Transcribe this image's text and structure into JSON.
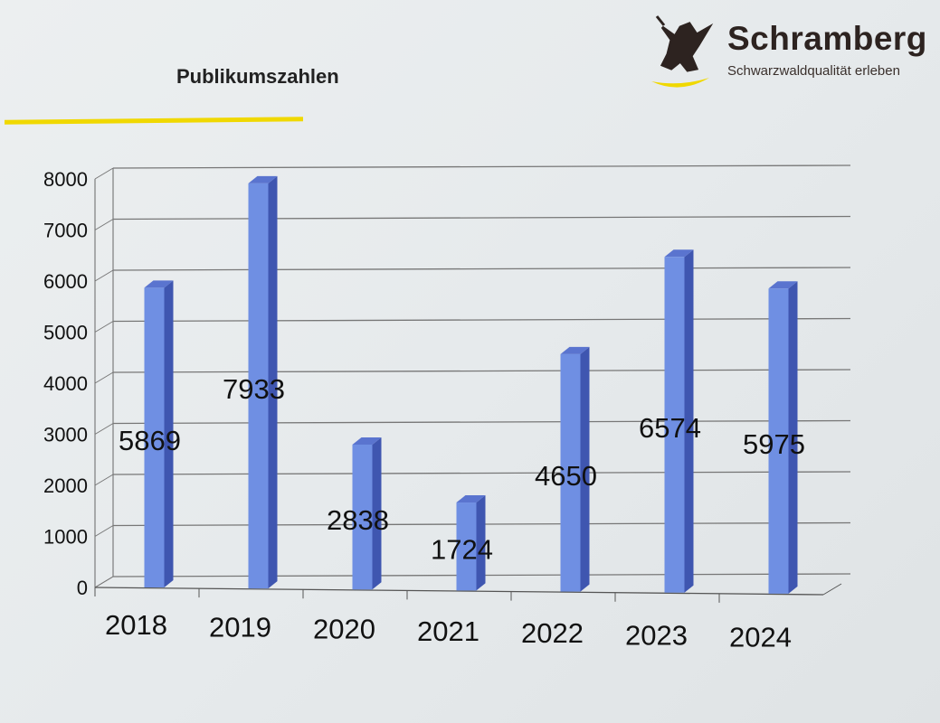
{
  "slide": {
    "title": "Publikumszahlen"
  },
  "logo": {
    "name": "Schramberg",
    "tagline": "Schwarzwaldqualität erleben",
    "accent": "#f0d800"
  },
  "chart_data": {
    "type": "bar",
    "title": "",
    "xlabel": "",
    "ylabel": "",
    "categories": [
      "2018",
      "2019",
      "2020",
      "2021",
      "2022",
      "2023",
      "2024"
    ],
    "values": [
      5869,
      7933,
      2838,
      1724,
      4650,
      6574,
      5975
    ],
    "data_labels": [
      "5869",
      "7933",
      "2838",
      "1724",
      "4650",
      "6574",
      "5975"
    ],
    "ylim": [
      0,
      8000
    ],
    "yticks": [
      "0",
      "1000",
      "2000",
      "3000",
      "4000",
      "5000",
      "6000",
      "7000",
      "8000"
    ],
    "grid": true,
    "style": "3d-column",
    "bar_color": "#6f8fe3"
  }
}
